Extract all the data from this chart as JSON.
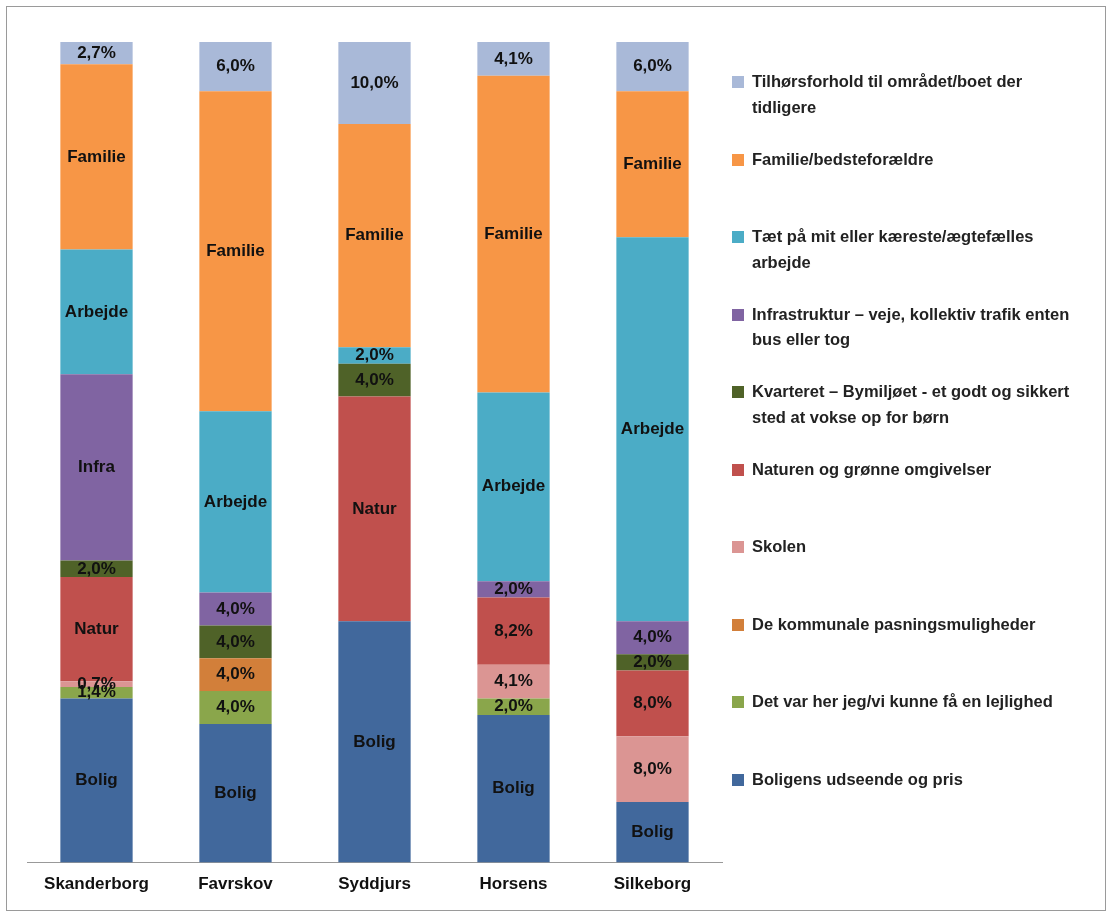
{
  "chart_data": {
    "type": "bar",
    "stacked": true,
    "legend": "right",
    "ylim": [
      0,
      100
    ],
    "tick_labels": "x",
    "categories": [
      "Skanderborg",
      "Favrskov",
      "Syddjurs",
      "Horsens",
      "Silkeborg"
    ],
    "series": [
      {
        "name": "Boligens udseende og pris",
        "color": "#41689c",
        "values": [
          20,
          16.9,
          29.4,
          18,
          7.4
        ],
        "value_labels": [
          "Bolig",
          "Bolig",
          "Bolig",
          "Bolig",
          "Bolig"
        ]
      },
      {
        "name": "Det var her jeg/vi kunne få en lejlighed",
        "color": "#8aa64b",
        "values": [
          1.4,
          4,
          null,
          2,
          null
        ],
        "value_labels": [
          "1,4%",
          "4,0%",
          null,
          "2,0%",
          null
        ]
      },
      {
        "name": "De kommunale pasningsmuligheder",
        "color": "#d27f3a",
        "values": [
          null,
          4,
          null,
          null,
          null
        ],
        "value_labels": [
          null,
          "4,0%",
          null,
          null,
          null
        ]
      },
      {
        "name": "Skolen",
        "color": "#db9593",
        "values": [
          0.7,
          null,
          null,
          4.1,
          8
        ],
        "value_labels": [
          "0,7%",
          null,
          null,
          "4,1%",
          "8,0%"
        ]
      },
      {
        "name": "Naturen og grønne omgivelser",
        "color": "#c0504d",
        "values": [
          12.7,
          null,
          27.4,
          8.2,
          8
        ],
        "value_labels": [
          "Natur",
          null,
          "Natur",
          "8,2%",
          "8,0%"
        ]
      },
      {
        "name": "Kvarteret – Bymiljøet  -  et godt og sikkert sted at vokse op for børn",
        "color": "#4f6228",
        "values": [
          2,
          4,
          4,
          null,
          2
        ],
        "value_labels": [
          "2,0%",
          "4,0%",
          "4,0%",
          null,
          "2,0%"
        ]
      },
      {
        "name": "Infrastruktur  – veje, kollektiv trafik enten bus eller tog",
        "color": "#8064a2",
        "values": [
          22.7,
          4,
          null,
          2,
          4
        ],
        "value_labels": [
          "Infra",
          "4,0%",
          null,
          "2,0%",
          "4,0%"
        ]
      },
      {
        "name": "Tæt på mit eller kæreste/ægtefælles arbejde",
        "color": "#4bacc6",
        "values": [
          15.2,
          22.1,
          2,
          23,
          46.8
        ],
        "value_labels": [
          "Arbejde",
          "Arbejde",
          "2,0%",
          "Arbejde",
          "Arbejde"
        ]
      },
      {
        "name": "Familie/bedsteforældre",
        "color": "#f79646",
        "values": [
          22.6,
          39,
          27.2,
          38.6,
          17.8
        ],
        "value_labels": [
          "Familie",
          "Familie",
          "Familie",
          "Familie",
          "Familie"
        ]
      },
      {
        "name": "Tilhørsforhold til området/boet der tidligere",
        "color": "#a9b9d8",
        "values": [
          2.7,
          6,
          10,
          4.1,
          6
        ],
        "value_labels": [
          "2,7%",
          "6,0%",
          "10,0%",
          "4,1%",
          "6,0%"
        ]
      }
    ]
  }
}
